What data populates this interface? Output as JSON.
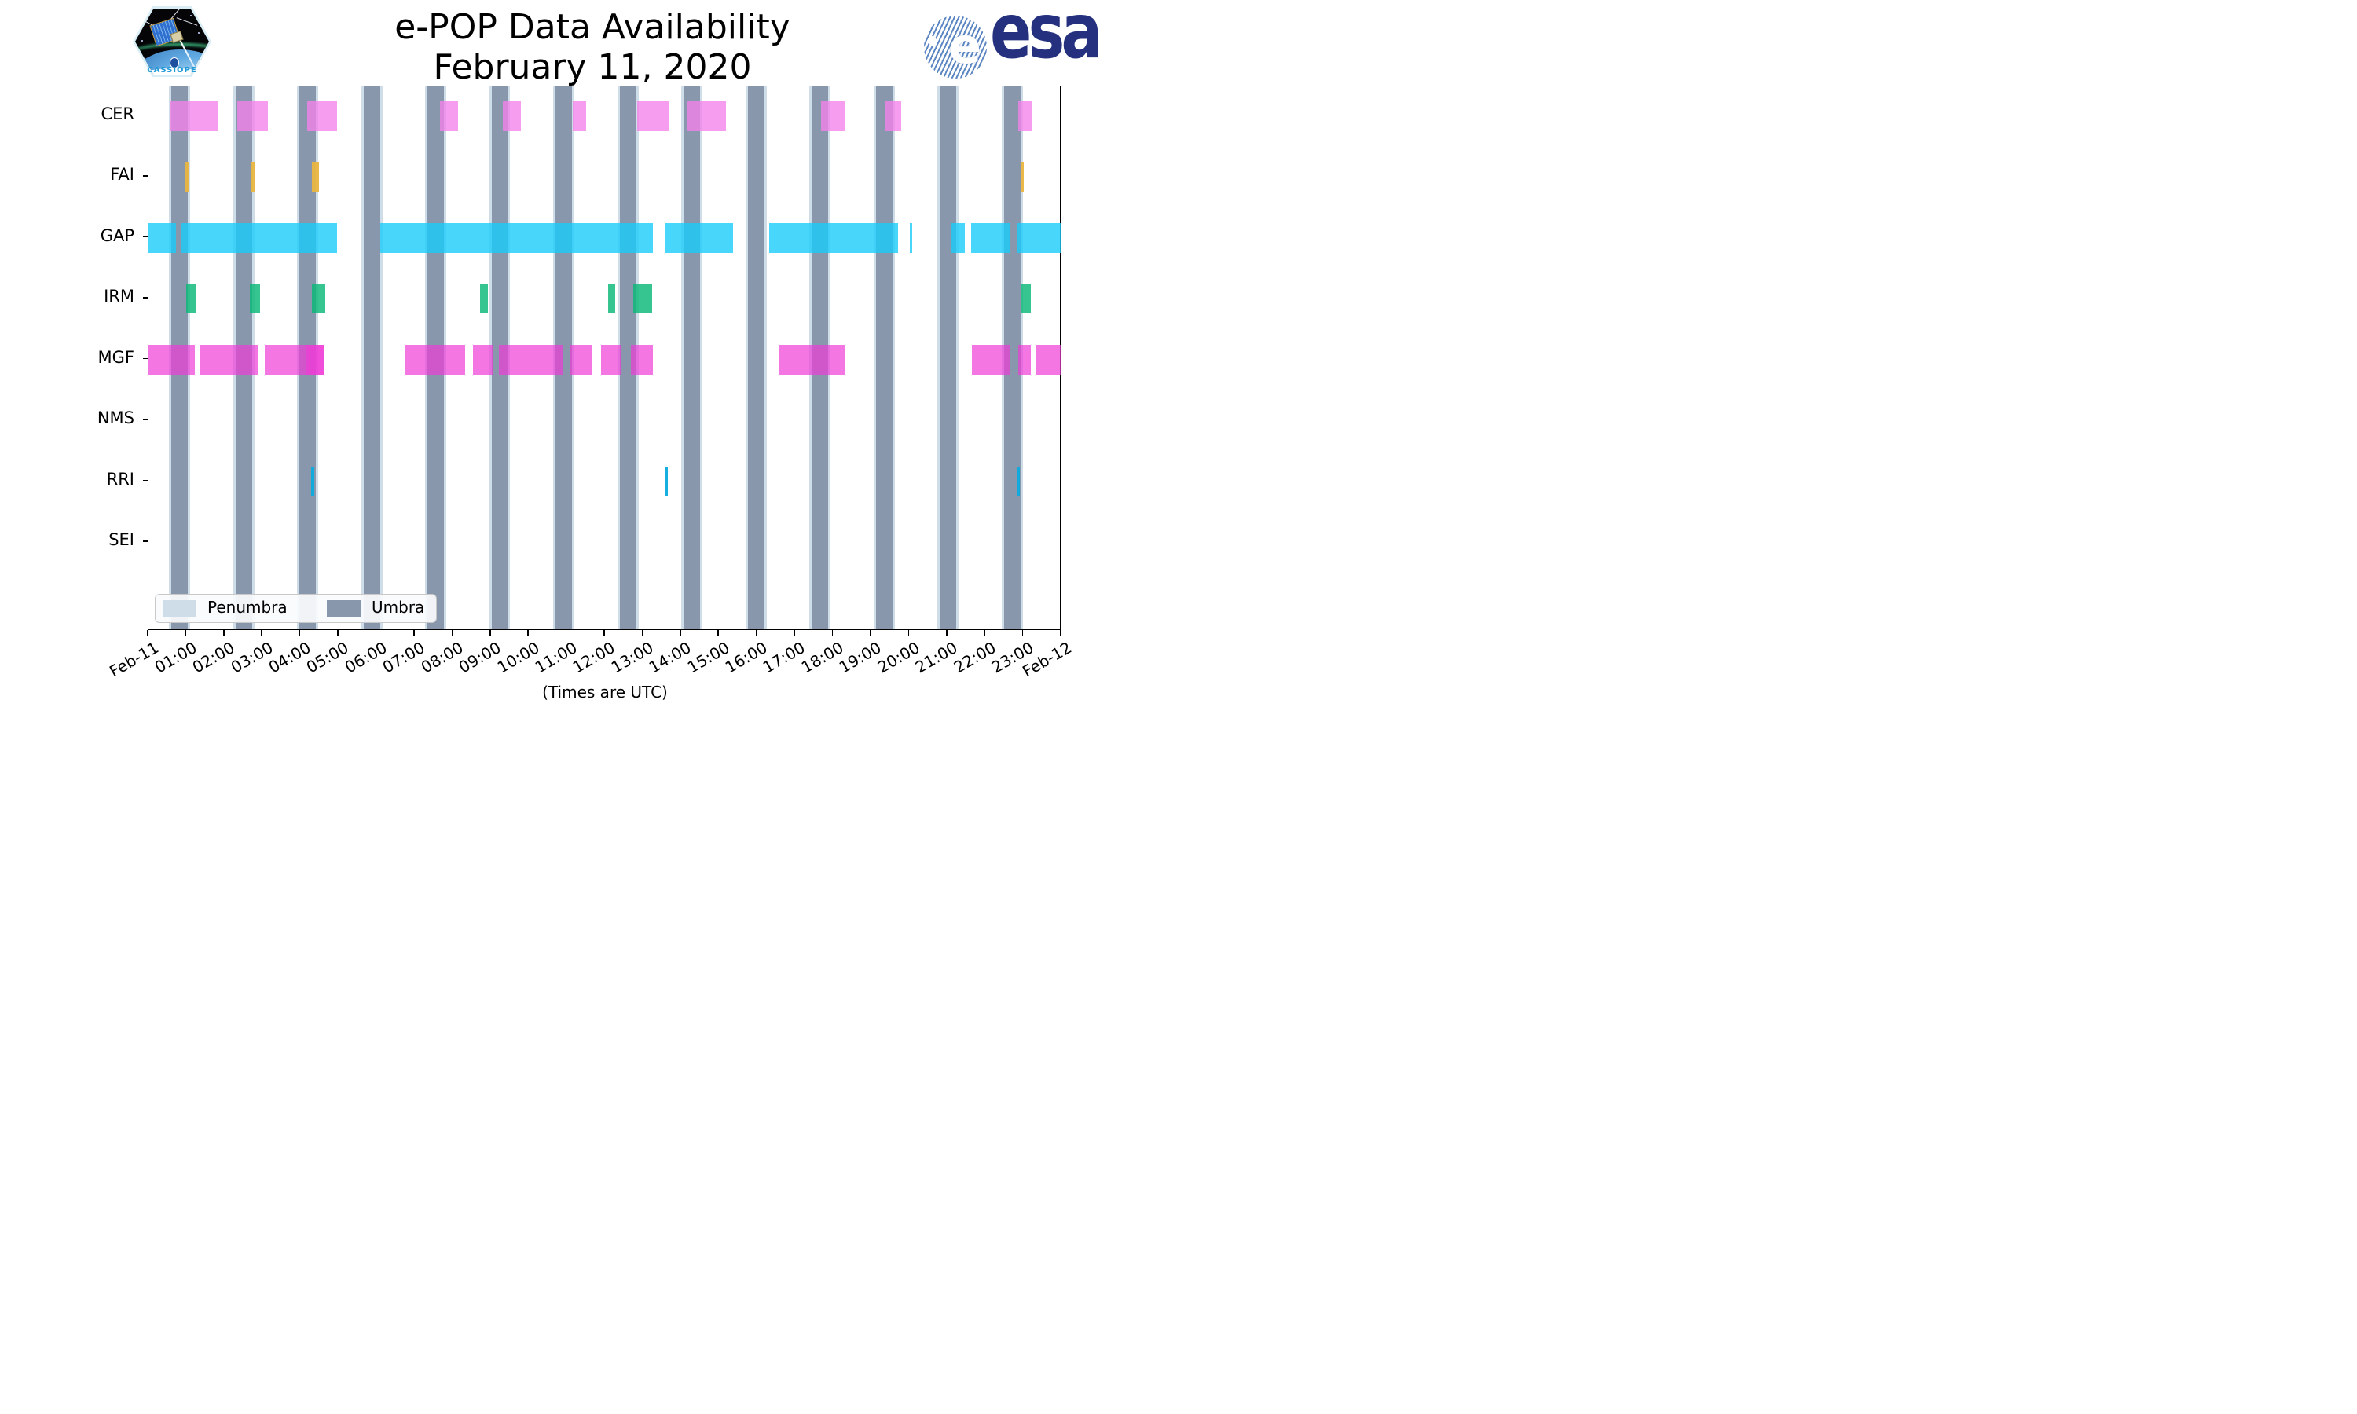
{
  "header": {
    "title_line1": "e-POP Data Availability",
    "title_line2": "February 11, 2020",
    "cassiope_label": "CASSIOPE",
    "esa_wordmark": "esa",
    "esa_globe_letter": "e"
  },
  "footer": {
    "note": "(Times are UTC)"
  },
  "legend": {
    "penumbra_label": "Penumbra",
    "umbra_label": "Umbra",
    "penumbra_color": "#cfdde9",
    "umbra_color": "#8897ac"
  },
  "chart_data": {
    "type": "gantt-availability",
    "title": "e-POP Data Availability",
    "subtitle": "February 11, 2020",
    "xlabel": "(Times are UTC)",
    "x_axis": {
      "unit": "hours UTC on 2020-02-11",
      "range_hours": [
        0,
        24
      ],
      "tick_hours": [
        0,
        1,
        2,
        3,
        4,
        5,
        6,
        7,
        8,
        9,
        10,
        11,
        12,
        13,
        14,
        15,
        16,
        17,
        18,
        19,
        20,
        21,
        22,
        23,
        24
      ],
      "tick_labels": [
        "Feb-11",
        "01:00",
        "02:00",
        "03:00",
        "04:00",
        "05:00",
        "06:00",
        "07:00",
        "08:00",
        "09:00",
        "10:00",
        "11:00",
        "12:00",
        "13:00",
        "14:00",
        "15:00",
        "16:00",
        "17:00",
        "18:00",
        "19:00",
        "20:00",
        "21:00",
        "22:00",
        "23:00",
        "Feb-12"
      ]
    },
    "colors": {
      "umbra": "#8897ac",
      "penumbra": "#cfdde9",
      "CER": "rgba(244,130,234,0.78)",
      "FAI": "rgba(233,181,64,0.95)",
      "GAP": "rgba(26,204,250,0.80)",
      "IRM": "rgba(10,184,120,0.82)",
      "MGF": "rgba(238,60,215,0.70)",
      "NMS": "rgba(150,150,150,0.8)",
      "RRI": "rgba(10,172,222,0.95)",
      "SEI": "rgba(150,150,150,0.8)"
    },
    "umbra_intervals_hours": [
      [
        0.6,
        1.04
      ],
      [
        2.29,
        2.72
      ],
      [
        3.97,
        4.4
      ],
      [
        5.65,
        6.09
      ],
      [
        7.34,
        7.77
      ],
      [
        9.02,
        9.45
      ],
      [
        10.7,
        11.14
      ],
      [
        12.39,
        12.82
      ],
      [
        14.07,
        14.5
      ],
      [
        15.75,
        16.19
      ],
      [
        17.44,
        17.87
      ],
      [
        19.12,
        19.56
      ],
      [
        20.8,
        21.24
      ],
      [
        22.49,
        22.92
      ]
    ],
    "penumbra_edge_hours": 0.06,
    "instruments": [
      {
        "name": "CER",
        "segments": [
          [
            0.58,
            1.82
          ],
          [
            2.33,
            3.14
          ],
          [
            4.17,
            4.95
          ],
          [
            7.66,
            8.14
          ],
          [
            9.31,
            9.78
          ],
          [
            11.15,
            11.51
          ],
          [
            12.85,
            13.67
          ],
          [
            14.17,
            15.18
          ],
          [
            17.67,
            18.31
          ],
          [
            19.36,
            19.79
          ],
          [
            22.87,
            23.24
          ]
        ]
      },
      {
        "name": "FAI",
        "segments": [
          [
            0.96,
            1.07
          ],
          [
            2.68,
            2.78
          ],
          [
            4.3,
            4.48
          ],
          [
            22.92,
            23.0
          ]
        ]
      },
      {
        "name": "GAP",
        "segments": [
          [
            0.0,
            0.72
          ],
          [
            0.86,
            4.95
          ],
          [
            6.09,
            13.26
          ],
          [
            13.58,
            15.36
          ],
          [
            16.32,
            19.7
          ],
          [
            20.02,
            20.06
          ],
          [
            21.1,
            21.47
          ],
          [
            21.62,
            22.66
          ],
          [
            22.82,
            24.0
          ]
        ]
      },
      {
        "name": "IRM",
        "segments": [
          [
            0.99,
            1.26
          ],
          [
            2.66,
            2.94
          ],
          [
            4.29,
            4.65
          ],
          [
            8.72,
            8.92
          ],
          [
            12.09,
            12.27
          ],
          [
            12.74,
            13.24
          ],
          [
            22.93,
            23.19
          ]
        ]
      },
      {
        "name": "MGF",
        "segments": [
          [
            0.0,
            1.22
          ],
          [
            1.37,
            2.89
          ],
          [
            3.06,
            4.62
          ],
          [
            4.13,
            4.62
          ],
          [
            6.75,
            8.32
          ],
          [
            8.53,
            9.04
          ],
          [
            9.22,
            10.88
          ],
          [
            11.09,
            11.66
          ],
          [
            11.9,
            12.44
          ],
          [
            12.69,
            13.26
          ],
          [
            16.56,
            18.29
          ],
          [
            21.65,
            22.65
          ],
          [
            22.87,
            23.19
          ],
          [
            23.32,
            24.0
          ]
        ]
      },
      {
        "name": "NMS",
        "segments": []
      },
      {
        "name": "RRI",
        "segments": [
          [
            4.28,
            4.35
          ],
          [
            13.58,
            13.65
          ],
          [
            22.83,
            22.91
          ]
        ]
      },
      {
        "name": "SEI",
        "segments": []
      }
    ]
  }
}
